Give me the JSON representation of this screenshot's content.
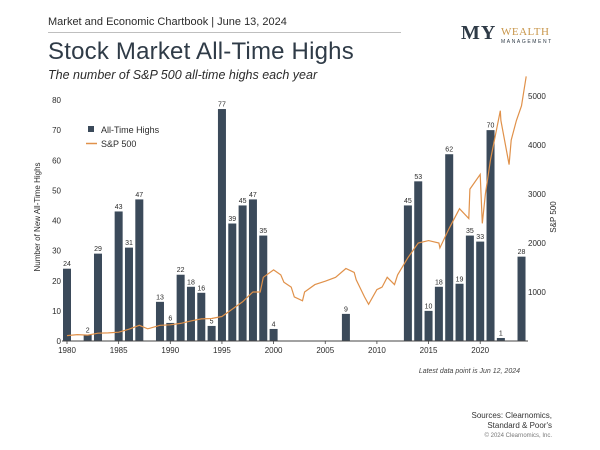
{
  "header": {
    "chartbook": "Market and Economic Chartbook | June 13, 2024",
    "title": "Stock Market All-Time Highs",
    "subtitle": "The number of S&P 500 all-time highs each year"
  },
  "logo": {
    "my": "MY",
    "wealth": "WEALTH",
    "management": "MANAGEMENT"
  },
  "footer": {
    "note": "Latest data point is Jun 12, 2024",
    "sources_line1": "Sources: Clearnomics,",
    "sources_line2": "Standard & Poor's",
    "copyright": "© 2024 Clearnomics, Inc."
  },
  "colors": {
    "bar": "#3b4a5a",
    "line": "#e0914a",
    "axis": "#444444",
    "text": "#2b2b2b"
  },
  "chart_data": {
    "type": "bar",
    "title": "Stock Market All-Time Highs",
    "subtitle": "The number of S&P 500 all-time highs each year",
    "ylabel": "Number of New All-Time Highs",
    "y2label": "S&P 500",
    "x_ticks": [
      1980,
      1985,
      1990,
      1995,
      2000,
      2005,
      2010,
      2015,
      2020
    ],
    "y_ticks": [
      0,
      10,
      20,
      30,
      40,
      50,
      60,
      70,
      80
    ],
    "y2_ticks": [
      1000,
      2000,
      3000,
      4000,
      5000
    ],
    "ylim": [
      0,
      80
    ],
    "y2lim": [
      0,
      5000
    ],
    "xlim": [
      1980,
      2024.5
    ],
    "legend": {
      "position": "top-left",
      "bars": "All-Time Highs",
      "line": "S&P 500"
    },
    "bars": [
      {
        "year": 1980,
        "value": 24
      },
      {
        "year": 1981,
        "value": 0
      },
      {
        "year": 1982,
        "value": 2
      },
      {
        "year": 1983,
        "value": 29
      },
      {
        "year": 1984,
        "value": 0
      },
      {
        "year": 1985,
        "value": 43
      },
      {
        "year": 1986,
        "value": 31
      },
      {
        "year": 1987,
        "value": 47
      },
      {
        "year": 1988,
        "value": 0
      },
      {
        "year": 1989,
        "value": 13
      },
      {
        "year": 1990,
        "value": 6
      },
      {
        "year": 1991,
        "value": 22
      },
      {
        "year": 1992,
        "value": 18
      },
      {
        "year": 1993,
        "value": 16
      },
      {
        "year": 1994,
        "value": 5
      },
      {
        "year": 1995,
        "value": 77
      },
      {
        "year": 1996,
        "value": 39
      },
      {
        "year": 1997,
        "value": 45
      },
      {
        "year": 1998,
        "value": 47
      },
      {
        "year": 1999,
        "value": 35
      },
      {
        "year": 2000,
        "value": 4
      },
      {
        "year": 2007,
        "value": 9
      },
      {
        "year": 2013,
        "value": 45
      },
      {
        "year": 2014,
        "value": 53
      },
      {
        "year": 2015,
        "value": 10
      },
      {
        "year": 2016,
        "value": 18
      },
      {
        "year": 2017,
        "value": 62
      },
      {
        "year": 2018,
        "value": 19
      },
      {
        "year": 2019,
        "value": 35
      },
      {
        "year": 2020,
        "value": 33
      },
      {
        "year": 2021,
        "value": 70
      },
      {
        "year": 2022,
        "value": 1
      },
      {
        "year": 2024,
        "value": 28
      }
    ],
    "series": [
      {
        "name": "S&P 500",
        "x": [
          1980,
          1981,
          1982,
          1983,
          1984,
          1985,
          1986,
          1987,
          1987.8,
          1988,
          1989,
          1990,
          1991,
          1992,
          1993,
          1994,
          1995,
          1996,
          1997,
          1998,
          1998.7,
          1999,
          2000,
          2000.7,
          2001,
          2001.7,
          2002,
          2002.8,
          2003,
          2004,
          2005,
          2006,
          2007,
          2007.8,
          2008,
          2008.8,
          2009.2,
          2010,
          2010.5,
          2011,
          2011.7,
          2012,
          2013,
          2014,
          2015,
          2016,
          2016.1,
          2017,
          2018,
          2018.9,
          2019,
          2020,
          2020.2,
          2020.5,
          2021,
          2021.95,
          2022,
          2022.8,
          2023,
          2023.5,
          2024,
          2024.45
        ],
        "values": [
          110,
          130,
          120,
          160,
          165,
          180,
          240,
          320,
          250,
          260,
          320,
          330,
          360,
          410,
          450,
          460,
          500,
          650,
          800,
          1000,
          1000,
          1300,
          1450,
          1350,
          1200,
          1100,
          900,
          820,
          1000,
          1150,
          1220,
          1300,
          1480,
          1400,
          1250,
          900,
          750,
          1050,
          1100,
          1300,
          1150,
          1350,
          1700,
          2000,
          2050,
          2000,
          1900,
          2300,
          2700,
          2500,
          3100,
          3400,
          2400,
          3000,
          3700,
          4700,
          4500,
          3600,
          4100,
          4500,
          4800,
          5400
        ]
      }
    ]
  }
}
